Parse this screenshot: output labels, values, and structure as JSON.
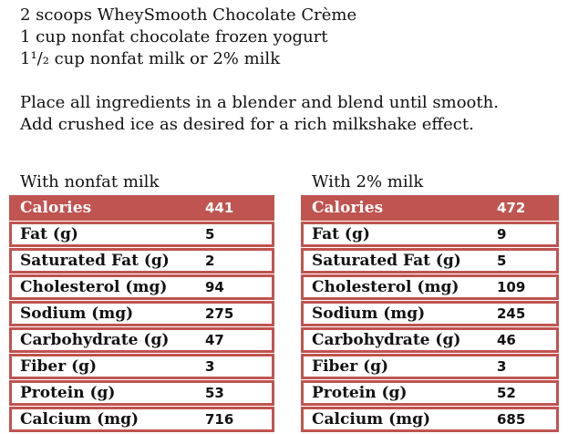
{
  "colors": {
    "table_red": "#bf5450",
    "header_text": "#ffffff",
    "body_text": "#111111",
    "page_background": "#ffffff"
  },
  "recipe": {
    "ingredients": [
      "2 scoops WheySmooth Chocolate Crème",
      "1 cup nonfat chocolate frozen yogurt",
      "1¹/₂ cup nonfat milk or 2% milk"
    ],
    "directions": [
      "Place all ingredients in a blender and blend until smooth.",
      "Add crushed ice as desired for a rich milkshake effect."
    ]
  },
  "tables": [
    {
      "title": "With nonfat milk",
      "rows": [
        [
          "Calories",
          "441"
        ],
        [
          "Fat (g)",
          "5"
        ],
        [
          "Saturated Fat (g)",
          "2"
        ],
        [
          "Cholesterol (mg)",
          "94"
        ],
        [
          "Sodium (mg)",
          "275"
        ],
        [
          "Carbohydrate (g)",
          "47"
        ],
        [
          "Fiber (g)",
          "3"
        ],
        [
          "Protein (g)",
          "53"
        ],
        [
          "Calcium (mg)",
          "716"
        ]
      ]
    },
    {
      "title": "With 2% milk",
      "rows": [
        [
          "Calories",
          "472"
        ],
        [
          "Fat (g)",
          "9"
        ],
        [
          "Saturated Fat (g)",
          "5"
        ],
        [
          "Cholesterol (mg)",
          "109"
        ],
        [
          "Sodium (mg)",
          "245"
        ],
        [
          "Carbohydrate (g)",
          "46"
        ],
        [
          "Fiber (g)",
          "3"
        ],
        [
          "Protein (g)",
          "52"
        ],
        [
          "Calcium (mg)",
          "685"
        ]
      ]
    }
  ]
}
